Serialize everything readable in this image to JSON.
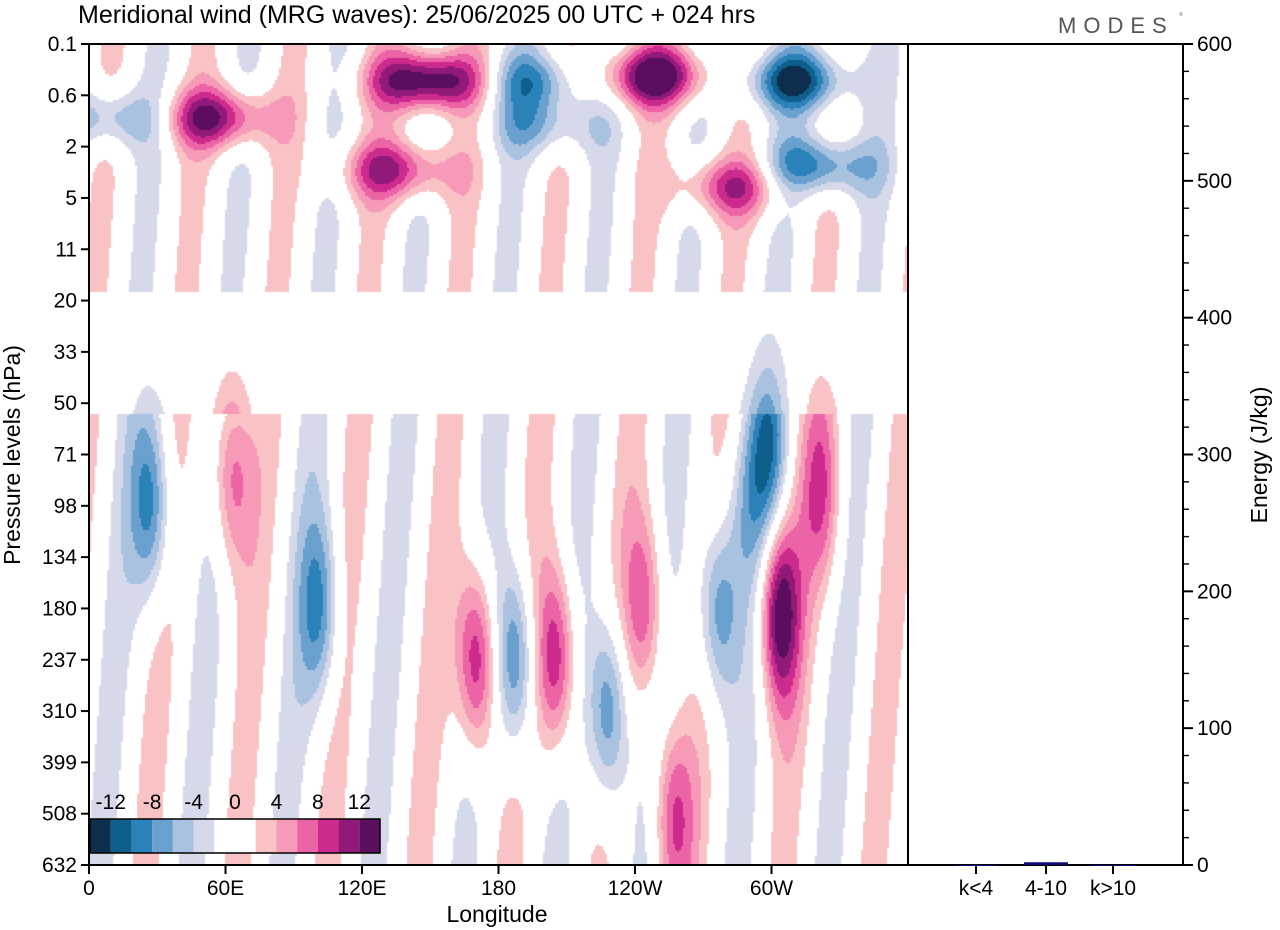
{
  "chart_data": [
    {
      "type": "heatmap",
      "title": "Meridional wind (MRG waves):  25/06/2025  00 UTC  + 024 hrs",
      "xlabel": "Longitude",
      "ylabel": "Pressure levels (hPa)",
      "x_ticks": [
        "0",
        "60E",
        "120E",
        "180",
        "120W",
        "60W"
      ],
      "y_ticks": [
        "0.1",
        "0.6",
        "2",
        "5",
        "11",
        "20",
        "33",
        "50",
        "71",
        "98",
        "134",
        "180",
        "237",
        "310",
        "399",
        "508",
        "632"
      ],
      "colorbar": {
        "labels": [
          "-12",
          "-8",
          "-4",
          "0",
          "4",
          "8",
          "12"
        ],
        "colors": [
          "#0d2e4d",
          "#0f5f8c",
          "#2b82b8",
          "#6aa0ce",
          "#a9c2e0",
          "#d5d9ea",
          "#ffffff",
          "#ffffff",
          "#f9c3c6",
          "#f69ab8",
          "#ec63a6",
          "#cd2a8e",
          "#911a78",
          "#5b0e5d"
        ]
      },
      "features": [
        {
          "lon": 170,
          "p": 237,
          "v": 12
        },
        {
          "lon": 187,
          "p": 237,
          "v": -10
        },
        {
          "lon": 205,
          "p": 237,
          "v": 11
        },
        {
          "lon": 228,
          "p": 310,
          "v": -10
        },
        {
          "lon": 244,
          "p": 180,
          "v": 8
        },
        {
          "lon": 256,
          "p": 508,
          "v": 8
        },
        {
          "lon": 276,
          "p": 180,
          "v": -9
        },
        {
          "lon": 303,
          "p": 180,
          "v": 14
        },
        {
          "lon": 298,
          "p": 71,
          "v": -8
        },
        {
          "lon": 322,
          "p": 90,
          "v": 7
        },
        {
          "lon": 288,
          "p": 98,
          "v": -4
        },
        {
          "lon": 27,
          "p": 98,
          "v": -9
        },
        {
          "lon": 62,
          "p": 80,
          "v": 8
        },
        {
          "lon": 101,
          "p": 180,
          "v": -8
        },
        {
          "lon": 55,
          "p": 1.0,
          "v": 12
        },
        {
          "lon": 135,
          "p": 3.0,
          "v": 10
        },
        {
          "lon": 149,
          "p": 0.35,
          "v": 16
        },
        {
          "lon": 248,
          "p": 0.3,
          "v": 14
        },
        {
          "lon": 282,
          "p": 4.0,
          "v": 9
        },
        {
          "lon": 310,
          "p": 0.35,
          "v": -12
        },
        {
          "lon": 320,
          "p": 2.8,
          "v": -10
        },
        {
          "lon": 10,
          "p": 1.0,
          "v": -7
        },
        {
          "lon": 195,
          "p": 0.35,
          "v": -8
        },
        {
          "lon": 200,
          "p": 1.2,
          "v": -6
        }
      ]
    },
    {
      "type": "bar",
      "categories": [
        "k<4",
        "4-10",
        "k>10"
      ],
      "values": [
        0,
        2,
        0
      ],
      "ylabel": "Energy (J/kg)",
      "ylim": [
        0,
        600
      ],
      "y_ticks": [
        "0",
        "100",
        "200",
        "300",
        "400",
        "500",
        "600"
      ],
      "bar_color": "#0a0a7a"
    }
  ],
  "brand": "MODES",
  "brand_mark": "°"
}
